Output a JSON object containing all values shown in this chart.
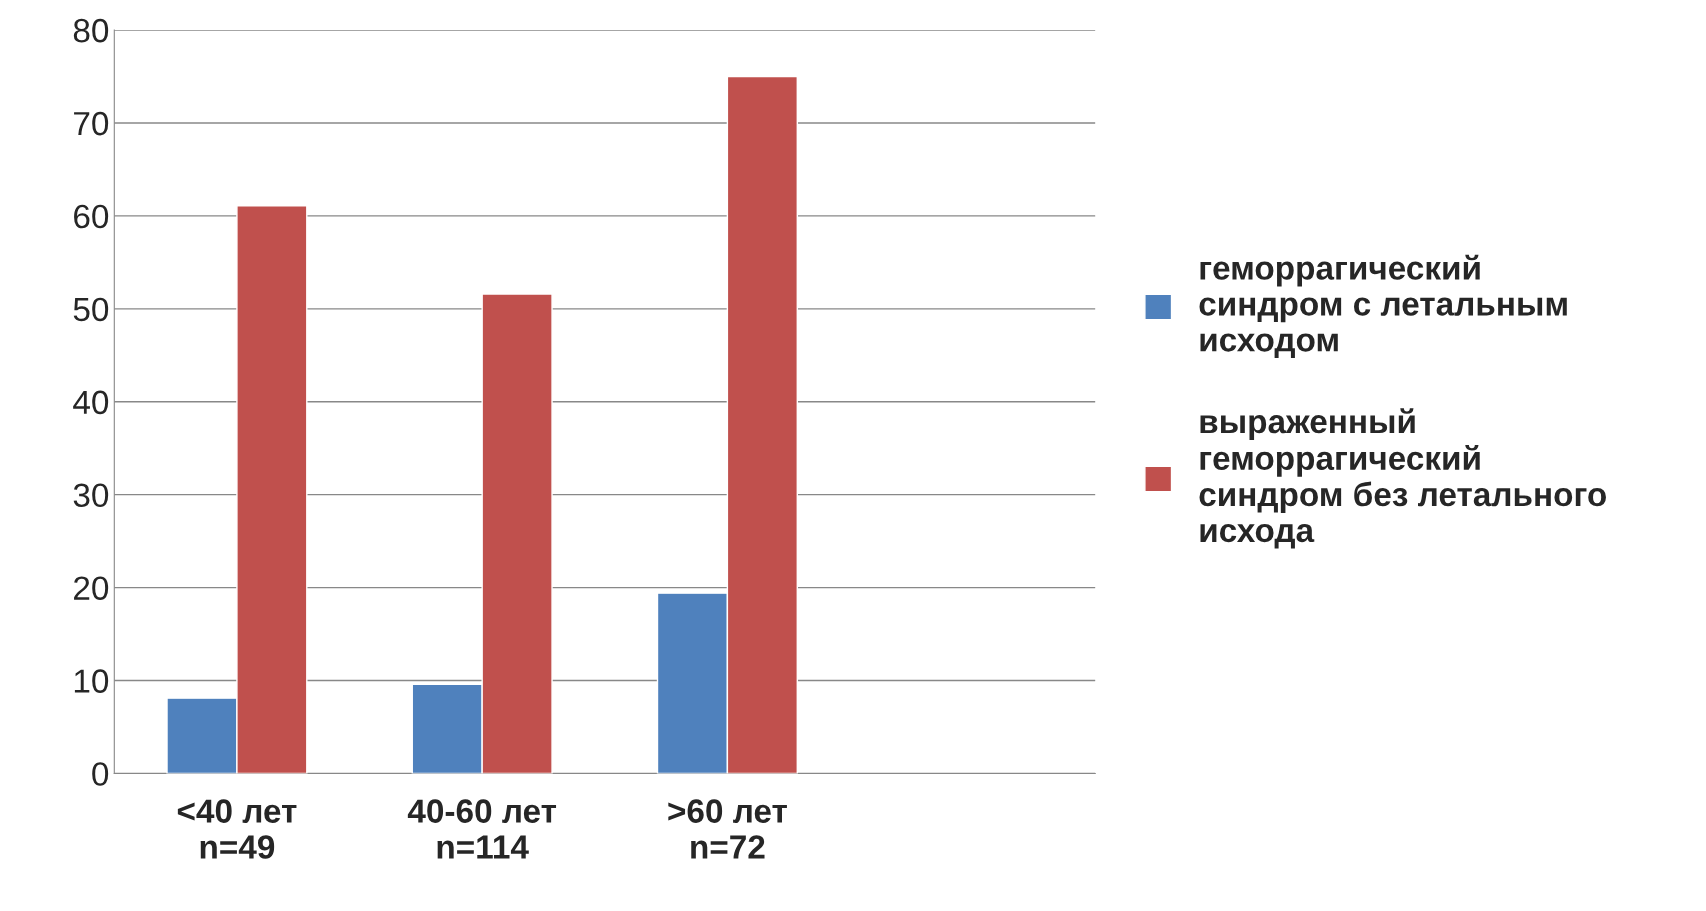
{
  "chart_data": {
    "type": "bar",
    "categories": [
      "<40 лет\nn=49",
      "40-60 лет\nn=114",
      ">60 лет\nn=72",
      null
    ],
    "series": [
      {
        "name": "геморрагический\nсиндром с летальным\nисходом",
        "color": "#4f81bd",
        "values": [
          8.1,
          9.6,
          19.4,
          null
        ]
      },
      {
        "name": "выраженный\nгеморрагический\nсиндром без летального\nисхода",
        "color": "#c0504d",
        "values": [
          61.1,
          51.6,
          75.0,
          null
        ]
      }
    ],
    "ylim": [
      0,
      80
    ],
    "yticks": [
      0,
      10,
      20,
      30,
      40,
      50,
      60,
      70,
      80
    ],
    "grid": "y",
    "legend": "right"
  }
}
